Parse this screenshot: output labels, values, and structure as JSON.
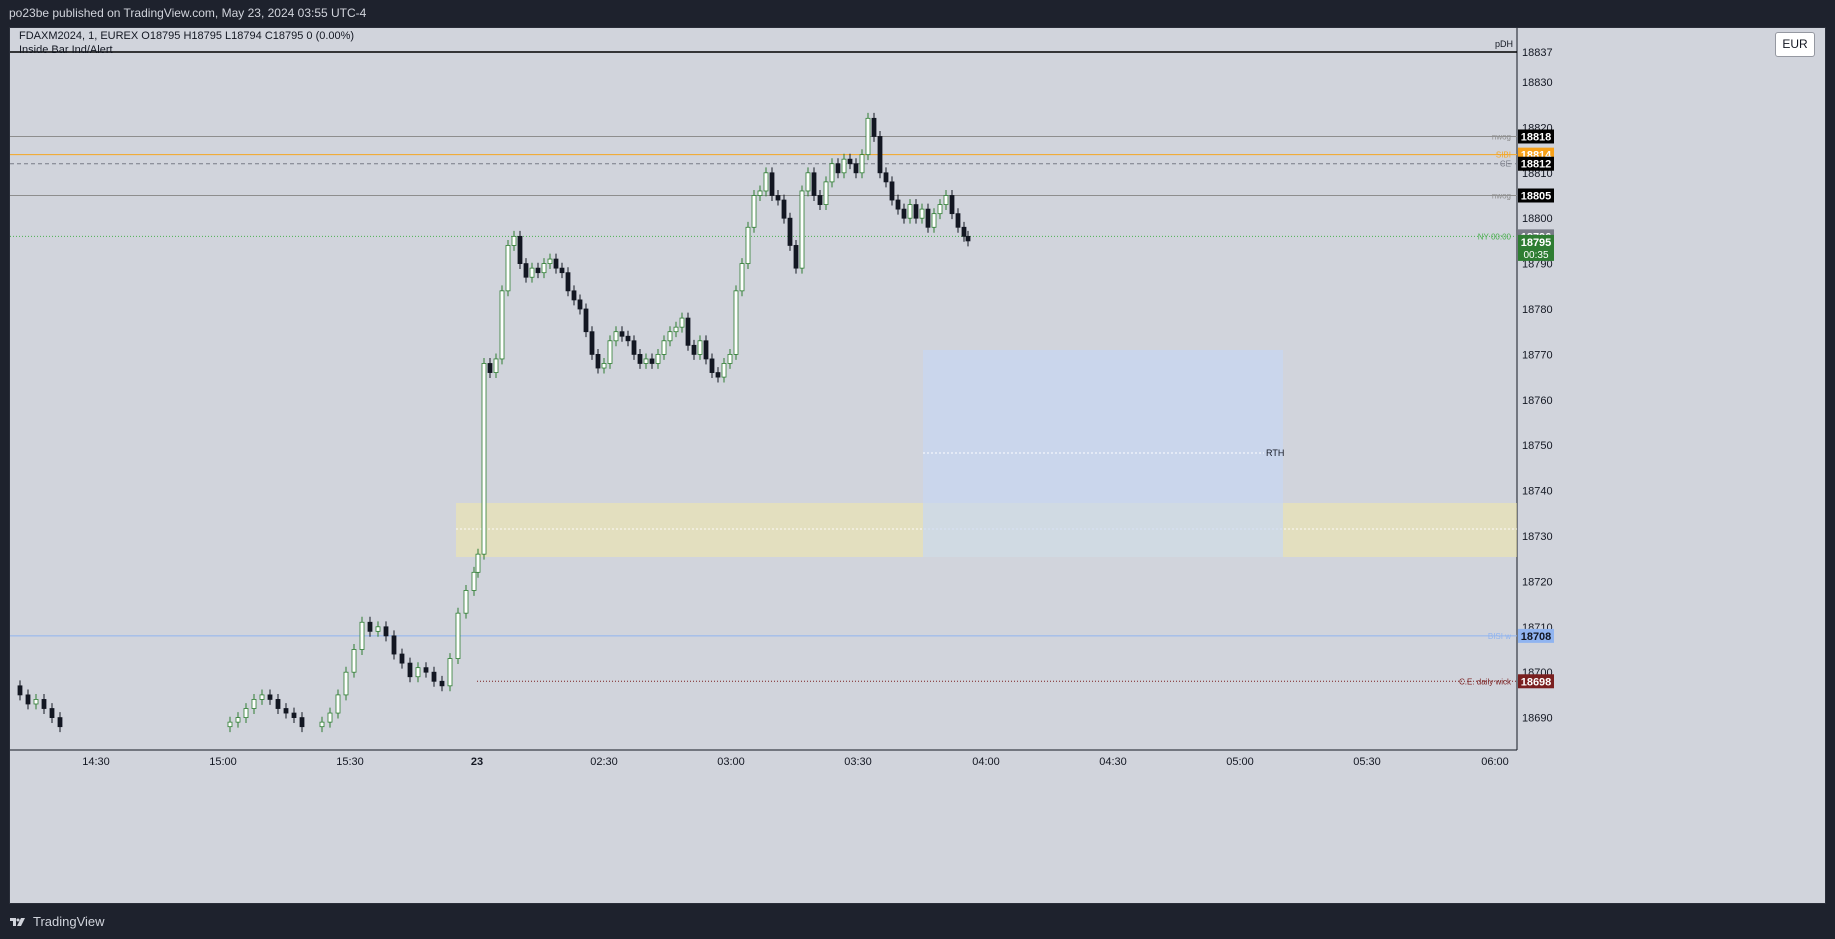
{
  "header": {
    "publish_text": "po23be published on TradingView.com, May 23, 2024 03:55 UTC-4"
  },
  "footer": {
    "brand": "TradingView"
  },
  "legend": {
    "symbol_line": "FDAXM2024, 1, EUREX  O18795  H18795  L18794  C18795  0 (0.00%)",
    "indicator": "Inside Bar Ind/Alert"
  },
  "currency_button": "EUR",
  "colors": {
    "up": "#2e7d32",
    "down": "#131722",
    "bg": "#d1d4dc",
    "grid": "#c4c7cf"
  },
  "price_axis": {
    "ticks": [
      "18830",
      "18820",
      "18810",
      "18800",
      "18790",
      "18780",
      "18770",
      "18760",
      "18750",
      "18740",
      "18730",
      "18720",
      "18710",
      "18700",
      "18690"
    ],
    "top_partial": "18837",
    "top_partial_label": "pDH"
  },
  "time_axis": {
    "ticks": [
      "14:30",
      "15:00",
      "15:30",
      "23",
      "02:30",
      "03:00",
      "03:30",
      "04:00",
      "04:30",
      "05:00",
      "05:30",
      "06:00"
    ]
  },
  "levels": [
    {
      "label": "nwog",
      "price": "18818",
      "line_color": "#8e8e8e",
      "tag_bg": "#000000"
    },
    {
      "label": "SIBI",
      "price": "18814",
      "line_color": "#f5a623",
      "tag_bg": "#f7a11a"
    },
    {
      "label": "CE",
      "price": "18812",
      "line_color": "#787b86",
      "tag_bg": "#000000"
    },
    {
      "label": "nwog",
      "price": "18805",
      "line_color": "#8e8e8e",
      "tag_bg": "#000000"
    },
    {
      "label": "NY 00:00",
      "price": "18796",
      "line_color": "#4caf50",
      "tag_bg": "#787b86"
    },
    {
      "label": "BISI w",
      "price": "18708",
      "line_color": "#90b4f0",
      "tag_bg": "#90b4f0"
    },
    {
      "label": "C.E. daily wick",
      "price": "18698",
      "line_color": "#7a1f1f",
      "tag_bg": "#7a1f1f"
    }
  ],
  "current_price": {
    "price": "18795",
    "countdown": "00:35"
  },
  "zones": {
    "rth_label": "RTH"
  }
}
